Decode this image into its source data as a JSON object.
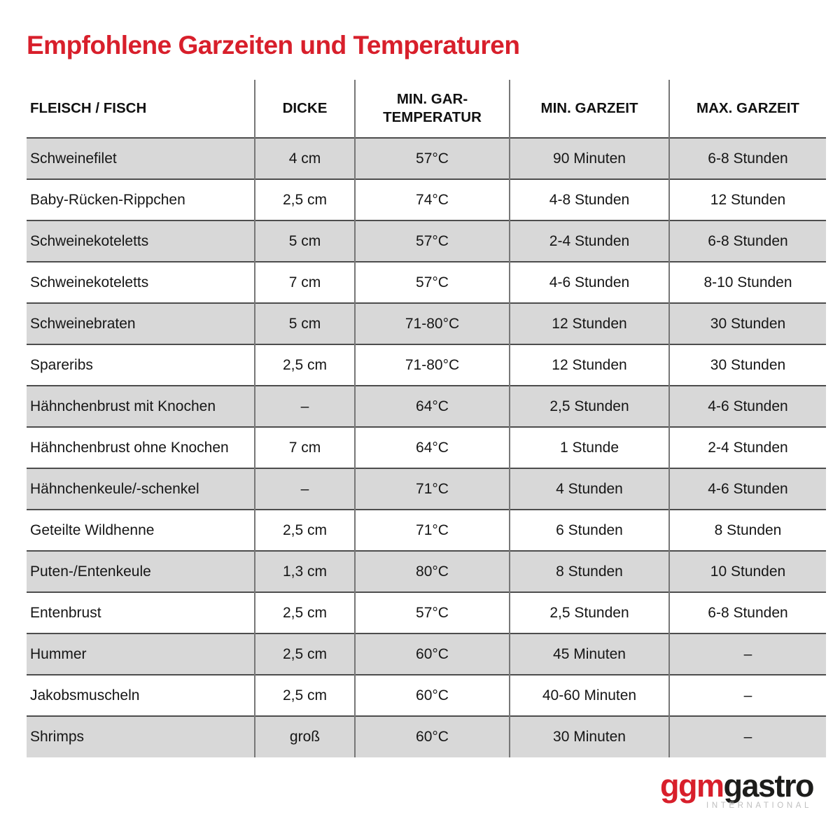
{
  "page": {
    "title": "Empfohlene Garzeiten und Temperaturen"
  },
  "colors": {
    "accent_red": "#d81f2b",
    "row_gray": "#d8d8d8",
    "row_separator": "#4d4d4d",
    "column_divider": "#777777",
    "logo_subtitle_gray": "#bfbfbf"
  },
  "table": {
    "headers": [
      "FLEISCH / FISCH",
      "DICKE",
      "MIN. GAR-\nTEMPERATUR",
      "MIN. GARZEIT",
      "MAX. GARZEIT"
    ],
    "rows": [
      [
        "Schweinefilet",
        "4 cm",
        "57°C",
        "90 Minuten",
        "6-8 Stunden"
      ],
      [
        "Baby-Rücken-Rippchen",
        "2,5 cm",
        "74°C",
        "4-8 Stunden",
        "12 Stunden"
      ],
      [
        "Schweinekoteletts",
        "5 cm",
        "57°C",
        "2-4 Stunden",
        "6-8 Stunden"
      ],
      [
        "Schweinekoteletts",
        "7 cm",
        "57°C",
        "4-6 Stunden",
        "8-10 Stunden"
      ],
      [
        "Schweinebraten",
        "5 cm",
        "71-80°C",
        "12 Stunden",
        "30 Stunden"
      ],
      [
        "Spareribs",
        "2,5 cm",
        "71-80°C",
        "12 Stunden",
        "30 Stunden"
      ],
      [
        "Hähnchenbrust mit Knochen",
        "–",
        "64°C",
        "2,5 Stunden",
        "4-6 Stunden"
      ],
      [
        "Hähnchenbrust ohne Knochen",
        "7 cm",
        "64°C",
        "1 Stunde",
        "2-4 Stunden"
      ],
      [
        "Hähnchenkeule/-schenkel",
        "–",
        "71°C",
        "4 Stunden",
        "4-6 Stunden"
      ],
      [
        "Geteilte Wildhenne",
        "2,5 cm",
        "71°C",
        "6 Stunden",
        "8 Stunden"
      ],
      [
        "Puten-/Entenkeule",
        "1,3 cm",
        "80°C",
        "8 Stunden",
        "10 Stunden"
      ],
      [
        "Entenbrust",
        "2,5 cm",
        "57°C",
        "2,5 Stunden",
        "6-8 Stunden"
      ],
      [
        "Hummer",
        "2,5 cm",
        "60°C",
        "45 Minuten",
        "–"
      ],
      [
        "Jakobsmuscheln",
        "2,5 cm",
        "60°C",
        "40-60 Minuten",
        "–"
      ],
      [
        "Shrimps",
        "groß",
        "60°C",
        "30 Minuten",
        "–"
      ]
    ]
  },
  "logo": {
    "brand_red": "ggm",
    "brand_dark": "gastro",
    "subtitle": "INTERNATIONAL"
  }
}
